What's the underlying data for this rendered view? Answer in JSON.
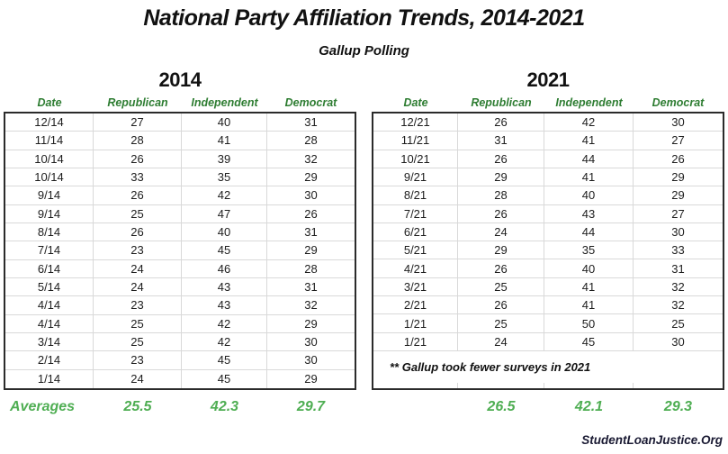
{
  "title": "National Party Affiliation Trends, 2014-2021",
  "subtitle": "Gallup Polling",
  "averages_label": "Averages",
  "footer": "StudentLoanJustice.Org",
  "colors": {
    "column_header_green": "#2e7d32",
    "averages_green": "#4fae53",
    "outer_border": "#2b2b2b",
    "gridline": "#d9d9d9",
    "footer_text": "#1a1a33"
  },
  "chart_data": [
    {
      "type": "table",
      "year": "2014",
      "columns": [
        "Date",
        "Republican",
        "Independent",
        "Democrat"
      ],
      "rows": [
        [
          "12/14",
          27,
          40,
          31
        ],
        [
          "11/14",
          28,
          41,
          28
        ],
        [
          "10/14",
          26,
          39,
          32
        ],
        [
          "10/14",
          33,
          35,
          29
        ],
        [
          "9/14",
          26,
          42,
          30
        ],
        [
          "9/14",
          25,
          47,
          26
        ],
        [
          "8/14",
          26,
          40,
          31
        ],
        [
          "7/14",
          23,
          45,
          29
        ],
        [
          "6/14",
          24,
          46,
          28
        ],
        [
          "5/14",
          24,
          43,
          31
        ],
        [
          "4/14",
          23,
          43,
          32
        ],
        [
          "4/14",
          25,
          42,
          29
        ],
        [
          "3/14",
          25,
          42,
          30
        ],
        [
          "2/14",
          23,
          45,
          30
        ],
        [
          "1/14",
          24,
          45,
          29
        ]
      ],
      "averages": [
        "25.5",
        "42.3",
        "29.7"
      ]
    },
    {
      "type": "table",
      "year": "2021",
      "columns": [
        "Date",
        "Republican",
        "Independent",
        "Democrat"
      ],
      "rows": [
        [
          "12/21",
          26,
          42,
          30
        ],
        [
          "11/21",
          31,
          41,
          27
        ],
        [
          "10/21",
          26,
          44,
          26
        ],
        [
          "9/21",
          29,
          41,
          29
        ],
        [
          "8/21",
          28,
          40,
          29
        ],
        [
          "7/21",
          26,
          43,
          27
        ],
        [
          "6/21",
          24,
          44,
          30
        ],
        [
          "5/21",
          29,
          35,
          33
        ],
        [
          "4/21",
          26,
          40,
          31
        ],
        [
          "3/21",
          25,
          41,
          32
        ],
        [
          "2/21",
          26,
          41,
          32
        ],
        [
          "1/21",
          25,
          50,
          25
        ],
        [
          "1/21",
          24,
          45,
          30
        ]
      ],
      "note": "** Gallup took fewer surveys in 2021",
      "averages": [
        "26.5",
        "42.1",
        "29.3"
      ]
    }
  ]
}
